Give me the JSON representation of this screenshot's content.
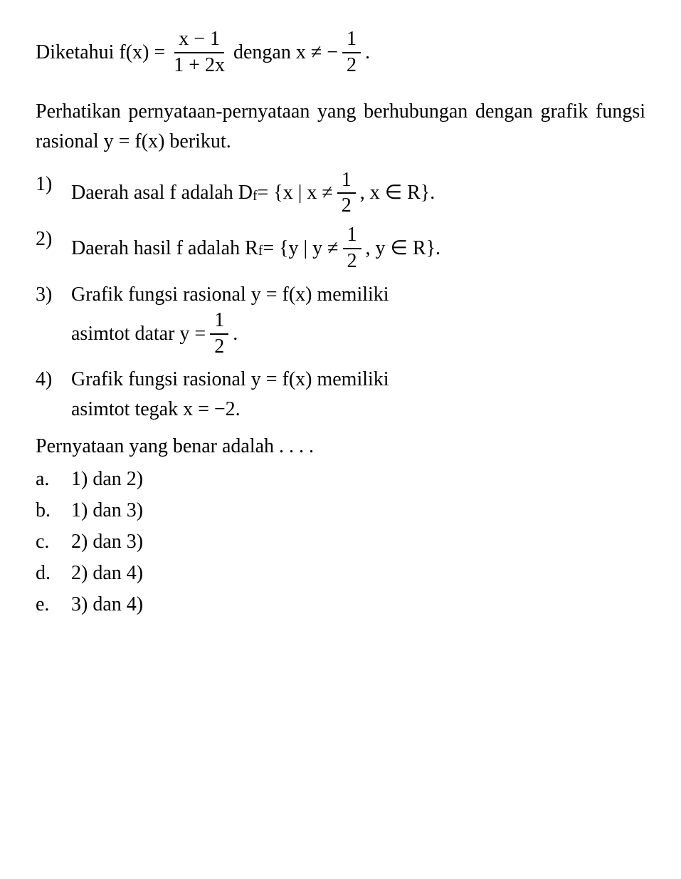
{
  "intro": {
    "prefix": "Diketahui f(x) = ",
    "frac1_num": "x − 1",
    "frac1_den": "1 + 2x",
    "mid": " dengan x ≠ −",
    "frac2_num": "1",
    "frac2_den": "2",
    "suffix": "."
  },
  "para": "Perhatikan pernyataan-pernyataan yang ber­hubungan dengan grafik fungsi rasional y = f(x) berikut.",
  "items": [
    {
      "n": "1)",
      "pre": "Daerah asal f adalah D",
      "sub": "f",
      "post1": " = {x | x ≠ ",
      "frac_num": "1",
      "frac_den": "2",
      "post2": ", x ∈ R}."
    },
    {
      "n": "2)",
      "pre": "Daerah hasil f adalah R",
      "sub": "f",
      "post1": " = {y | y ≠ ",
      "frac_num": "1",
      "frac_den": "2",
      "post2": ", y ∈ R}."
    },
    {
      "n": "3)",
      "line1": "Grafik fungsi rasional y = f(x) memiliki",
      "line2_pre": "asimtot datar y = ",
      "frac_num": "1",
      "frac_den": "2",
      "line2_post": "."
    },
    {
      "n": "4)",
      "line1": "Grafik fungsi rasional y = f(x) memiliki",
      "line2": "asimtot tegak x = −2."
    }
  ],
  "question": "Pernyataan yang benar adalah . . . .",
  "options": [
    {
      "lbl": "a.",
      "txt": "1) dan 2)"
    },
    {
      "lbl": "b.",
      "txt": "1) dan 3)"
    },
    {
      "lbl": "c.",
      "txt": "2) dan 3)"
    },
    {
      "lbl": "d.",
      "txt": "2) dan 4)"
    },
    {
      "lbl": "e.",
      "txt": "3) dan 4)"
    }
  ],
  "style": {
    "font_family": "Times New Roman",
    "font_size_pt": 21,
    "text_color": "#000000",
    "background_color": "#ffffff"
  }
}
